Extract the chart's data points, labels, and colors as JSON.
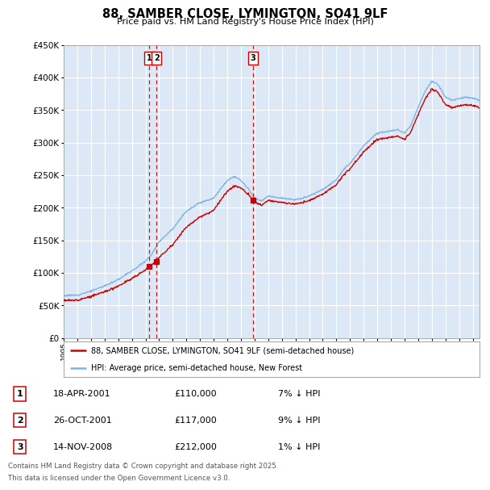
{
  "title": "88, SAMBER CLOSE, LYMINGTON, SO41 9LF",
  "subtitle": "Price paid vs. HM Land Registry's House Price Index (HPI)",
  "ylim": [
    0,
    450000
  ],
  "yticks": [
    0,
    50000,
    100000,
    150000,
    200000,
    250000,
    300000,
    350000,
    400000,
    450000
  ],
  "xlim_start": 1995.0,
  "xlim_end": 2025.5,
  "bg_color": "#ffffff",
  "chart_bg_color": "#dce8f5",
  "grid_color": "#ffffff",
  "transaction_dates": [
    2001.29,
    2001.82,
    2008.88
  ],
  "transaction_labels": [
    "1",
    "2",
    "3"
  ],
  "transaction_prices": [
    110000,
    117000,
    212000
  ],
  "legend_line1": "88, SAMBER CLOSE, LYMINGTON, SO41 9LF (semi-detached house)",
  "legend_line2": "HPI: Average price, semi-detached house, New Forest",
  "footer_line1": "Contains HM Land Registry data © Crown copyright and database right 2025.",
  "footer_line2": "This data is licensed under the Open Government Licence v3.0.",
  "table_rows": [
    {
      "num": "1",
      "date": "18-APR-2001",
      "price": "£110,000",
      "hpi": "7% ↓ HPI"
    },
    {
      "num": "2",
      "date": "26-OCT-2001",
      "price": "£117,000",
      "hpi": "9% ↓ HPI"
    },
    {
      "num": "3",
      "date": "14-NOV-2008",
      "price": "£212,000",
      "hpi": "1% ↓ HPI"
    }
  ],
  "price_line_color": "#cc0000",
  "hpi_line_color": "#7eb4e0",
  "vline_color": "#cc0000"
}
